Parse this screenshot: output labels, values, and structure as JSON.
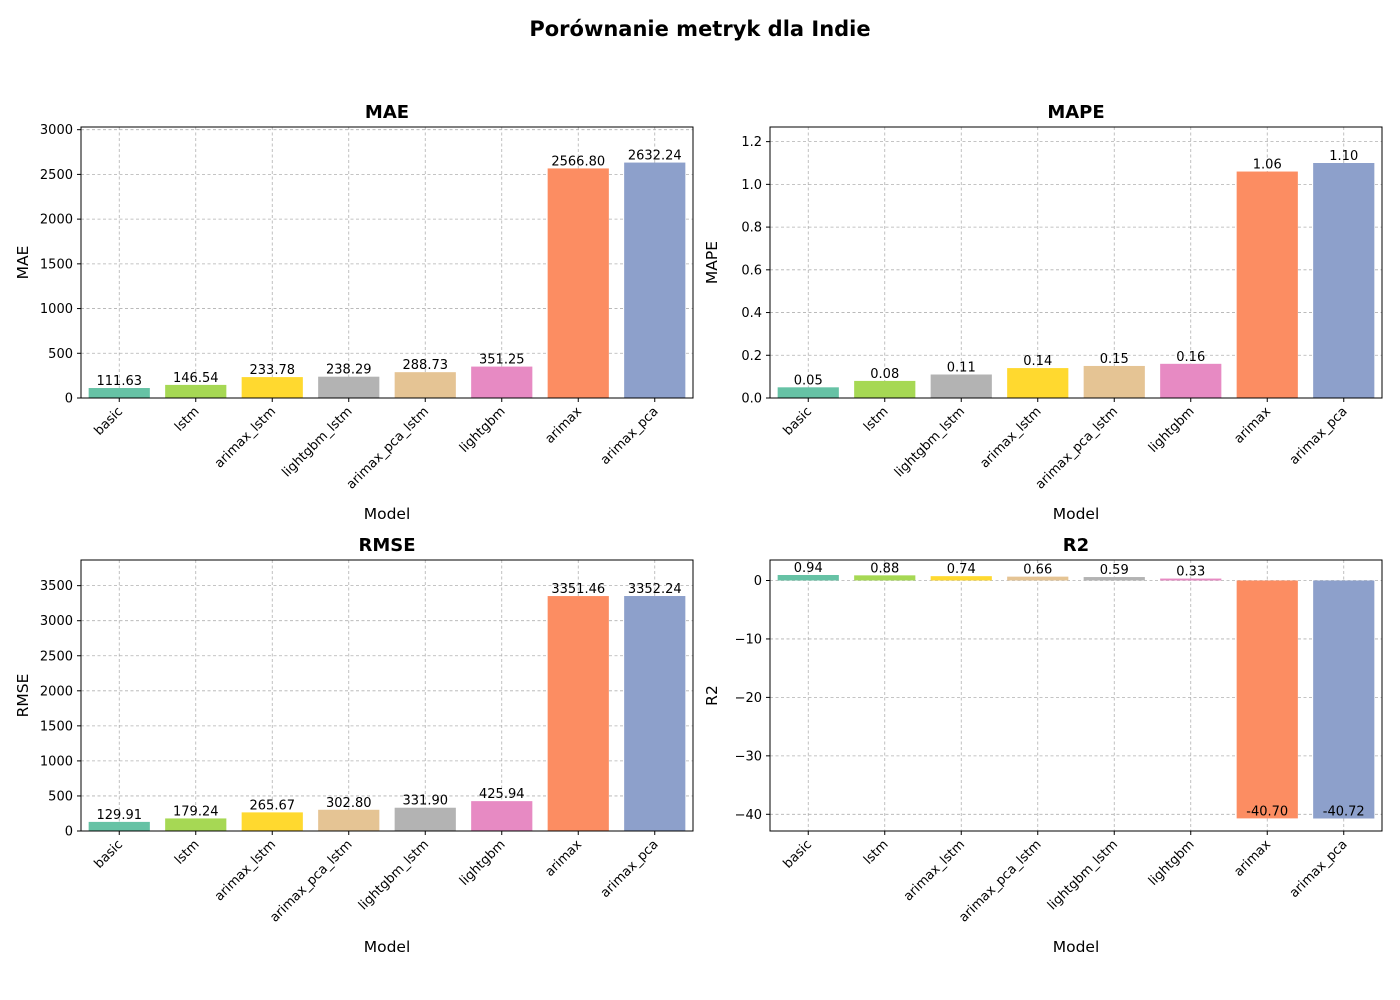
{
  "figure": {
    "title": "Porównanie metryk dla Indie"
  },
  "colors": {
    "basic": "#66c2a5",
    "lstm": "#a6d854",
    "arimax_lstm": "#ffd92f",
    "lightgbm_lstm": "#b3b3b3",
    "arimax_pca_lstm": "#e5c494",
    "lightgbm": "#e78ac3",
    "arimax": "#fc8d62",
    "arimax_pca": "#8da0cb",
    "grid": "#b0b0b0"
  },
  "chart_data": [
    {
      "type": "bar",
      "title": "MAE",
      "xlabel": "Model",
      "ylabel": "MAE",
      "categories": [
        "basic",
        "lstm",
        "arimax_lstm",
        "lightgbm_lstm",
        "arimax_pca_lstm",
        "lightgbm",
        "arimax",
        "arimax_pca"
      ],
      "values": [
        111.63,
        146.54,
        233.78,
        238.29,
        288.73,
        351.25,
        2566.8,
        2632.24
      ],
      "value_labels": [
        "111.63",
        "146.54",
        "233.78",
        "238.29",
        "288.73",
        "351.25",
        "2566.80",
        "2632.24"
      ],
      "yticks": [
        0,
        500,
        1000,
        1500,
        2000,
        2500,
        3000
      ],
      "ylim": [
        0,
        3000
      ],
      "grid": true
    },
    {
      "type": "bar",
      "title": "MAPE",
      "xlabel": "Model",
      "ylabel": "MAPE",
      "categories": [
        "basic",
        "lstm",
        "lightgbm_lstm",
        "arimax_lstm",
        "arimax_pca_lstm",
        "lightgbm",
        "arimax",
        "arimax_pca"
      ],
      "values": [
        0.05,
        0.08,
        0.11,
        0.14,
        0.15,
        0.16,
        1.06,
        1.1
      ],
      "value_labels": [
        "0.05",
        "0.08",
        "0.11",
        "0.14",
        "0.15",
        "0.16",
        "1.06",
        "1.10"
      ],
      "yticks": [
        0.0,
        0.2,
        0.4,
        0.6,
        0.8,
        1.0,
        1.2
      ],
      "ytick_labels": [
        "0.0",
        "0.2",
        "0.4",
        "0.6",
        "0.8",
        "1.0",
        "1.2"
      ],
      "ylim": [
        0,
        1.2
      ],
      "grid": true
    },
    {
      "type": "bar",
      "title": "RMSE",
      "xlabel": "Model",
      "ylabel": "RMSE",
      "categories": [
        "basic",
        "lstm",
        "arimax_lstm",
        "arimax_pca_lstm",
        "lightgbm_lstm",
        "lightgbm",
        "arimax",
        "arimax_pca"
      ],
      "values": [
        129.91,
        179.24,
        265.67,
        302.8,
        331.9,
        425.94,
        3351.46,
        3352.24
      ],
      "value_labels": [
        "129.91",
        "179.24",
        "265.67",
        "302.80",
        "331.90",
        "425.94",
        "3351.46",
        "3352.24"
      ],
      "yticks": [
        0,
        500,
        1000,
        1500,
        2000,
        2500,
        3000,
        3500
      ],
      "ylim": [
        0,
        3500
      ],
      "grid": true
    },
    {
      "type": "bar",
      "title": "R2",
      "xlabel": "Model",
      "ylabel": "R2",
      "categories": [
        "basic",
        "lstm",
        "arimax_lstm",
        "arimax_pca_lstm",
        "lightgbm_lstm",
        "lightgbm",
        "arimax",
        "arimax_pca"
      ],
      "values": [
        0.94,
        0.88,
        0.74,
        0.66,
        0.59,
        0.33,
        -40.7,
        -40.72
      ],
      "value_labels": [
        "0.94",
        "0.88",
        "0.74",
        "0.66",
        "0.59",
        "0.33",
        "-40.70",
        "-40.72"
      ],
      "yticks": [
        0,
        -10,
        -20,
        -30,
        -40
      ],
      "ytick_labels": [
        "0",
        "−10",
        "−20",
        "−30",
        "−40"
      ],
      "ylim": [
        -40,
        0
      ],
      "grid": true
    }
  ]
}
